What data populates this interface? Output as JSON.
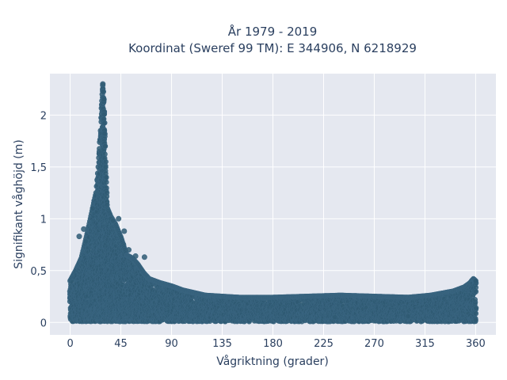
{
  "chart_data": {
    "type": "scatter",
    "title_line1": "År 1979 - 2019",
    "title_line2": "Koordinat (Sweref 99 TM): E 344906, N 6218929",
    "xlabel": "Vågriktning (grader)",
    "ylabel": "Signifikant våghöjd (m)",
    "xlim": [
      -18,
      378
    ],
    "ylim": [
      -0.12,
      2.4
    ],
    "xticks": [
      0,
      45,
      90,
      135,
      180,
      225,
      270,
      315,
      360
    ],
    "xtick_labels": [
      "0",
      "45",
      "90",
      "135",
      "180",
      "225",
      "270",
      "315",
      "360"
    ],
    "yticks": [
      0,
      0.5,
      1,
      1.5,
      2
    ],
    "ytick_labels": [
      "0",
      "0,5",
      "1",
      "1,5",
      "2"
    ],
    "grid": true,
    "colors": {
      "marker": "#2f5a73",
      "marker_edge": "#3a6580",
      "plot_bg": "#e5e8f0",
      "grid": "#ffffff",
      "text": "#2a3f5f"
    },
    "envelope": [
      {
        "x": 0,
        "y": 0.4
      },
      {
        "x": 5,
        "y": 0.5
      },
      {
        "x": 10,
        "y": 0.62
      },
      {
        "x": 15,
        "y": 0.85
      },
      {
        "x": 18,
        "y": 1.0
      },
      {
        "x": 20,
        "y": 1.1
      },
      {
        "x": 23,
        "y": 1.25
      },
      {
        "x": 25,
        "y": 1.5
      },
      {
        "x": 27,
        "y": 1.85
      },
      {
        "x": 28,
        "y": 2.1
      },
      {
        "x": 29,
        "y": 2.3
      },
      {
        "x": 30,
        "y": 2.15
      },
      {
        "x": 31,
        "y": 1.7
      },
      {
        "x": 33,
        "y": 1.1
      },
      {
        "x": 36,
        "y": 1.02
      },
      {
        "x": 40,
        "y": 0.95
      },
      {
        "x": 45,
        "y": 0.82
      },
      {
        "x": 50,
        "y": 0.65
      },
      {
        "x": 55,
        "y": 0.62
      },
      {
        "x": 60,
        "y": 0.56
      },
      {
        "x": 65,
        "y": 0.48
      },
      {
        "x": 70,
        "y": 0.42
      },
      {
        "x": 80,
        "y": 0.38
      },
      {
        "x": 90,
        "y": 0.35
      },
      {
        "x": 100,
        "y": 0.31
      },
      {
        "x": 120,
        "y": 0.26
      },
      {
        "x": 150,
        "y": 0.24
      },
      {
        "x": 180,
        "y": 0.24
      },
      {
        "x": 210,
        "y": 0.25
      },
      {
        "x": 240,
        "y": 0.26
      },
      {
        "x": 270,
        "y": 0.25
      },
      {
        "x": 300,
        "y": 0.24
      },
      {
        "x": 320,
        "y": 0.26
      },
      {
        "x": 340,
        "y": 0.3
      },
      {
        "x": 350,
        "y": 0.34
      },
      {
        "x": 355,
        "y": 0.38
      },
      {
        "x": 358,
        "y": 0.42
      },
      {
        "x": 360,
        "y": 0.4
      }
    ],
    "outliers": [
      {
        "x": 8,
        "y": 0.83
      },
      {
        "x": 12,
        "y": 0.9
      },
      {
        "x": 14,
        "y": 0.78
      },
      {
        "x": 20,
        "y": 1.1
      },
      {
        "x": 36,
        "y": 1.0
      },
      {
        "x": 38,
        "y": 0.98
      },
      {
        "x": 43,
        "y": 1.0
      },
      {
        "x": 48,
        "y": 0.88
      },
      {
        "x": 52,
        "y": 0.7
      },
      {
        "x": 58,
        "y": 0.64
      },
      {
        "x": 66,
        "y": 0.63
      },
      {
        "x": 235,
        "y": 0.05
      },
      {
        "x": 300,
        "y": 0.06
      }
    ]
  }
}
